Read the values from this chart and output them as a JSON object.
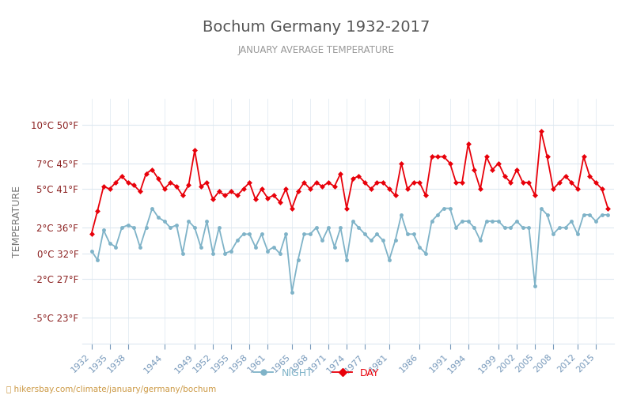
{
  "title": "Bochum Germany 1932-2017",
  "subtitle": "JANUARY AVERAGE TEMPERATURE",
  "ylabel": "TEMPERATURE",
  "xlabel_url": "hikersbay.com/climate/january/germany/bochum",
  "legend_night": "NIGHT",
  "legend_day": "DAY",
  "years": [
    1932,
    1933,
    1934,
    1935,
    1936,
    1937,
    1938,
    1939,
    1940,
    1941,
    1942,
    1943,
    1944,
    1945,
    1946,
    1947,
    1948,
    1949,
    1950,
    1951,
    1952,
    1953,
    1954,
    1955,
    1956,
    1957,
    1958,
    1959,
    1960,
    1961,
    1962,
    1963,
    1964,
    1965,
    1966,
    1967,
    1968,
    1969,
    1970,
    1971,
    1972,
    1973,
    1974,
    1975,
    1976,
    1977,
    1978,
    1979,
    1980,
    1981,
    1982,
    1983,
    1984,
    1985,
    1986,
    1987,
    1988,
    1989,
    1990,
    1991,
    1992,
    1993,
    1994,
    1995,
    1996,
    1997,
    1998,
    1999,
    2000,
    2001,
    2002,
    2003,
    2004,
    2005,
    2006,
    2007,
    2008,
    2009,
    2010,
    2011,
    2012,
    2013,
    2014,
    2015,
    2016,
    2017
  ],
  "day_temps": [
    1.5,
    3.3,
    5.2,
    5.0,
    5.5,
    6.0,
    5.5,
    5.3,
    4.8,
    6.2,
    6.5,
    5.8,
    5.0,
    5.5,
    5.2,
    4.5,
    5.3,
    8.0,
    5.2,
    5.5,
    4.2,
    4.8,
    4.5,
    4.8,
    4.5,
    5.0,
    5.5,
    4.2,
    5.0,
    4.3,
    4.5,
    4.0,
    5.0,
    3.5,
    4.8,
    5.5,
    5.0,
    5.5,
    5.2,
    5.5,
    5.2,
    6.2,
    3.5,
    5.8,
    6.0,
    5.5,
    5.0,
    5.5,
    5.5,
    5.0,
    4.5,
    7.0,
    5.0,
    5.5,
    5.5,
    4.5,
    7.5,
    7.5,
    7.5,
    7.0,
    5.5,
    5.5,
    8.5,
    6.5,
    5.0,
    7.5,
    6.5,
    7.0,
    6.0,
    5.5,
    6.5,
    5.5,
    5.5,
    4.5,
    9.5,
    7.5,
    5.0,
    5.5,
    6.0,
    5.5,
    5.0,
    7.5,
    6.0,
    5.5,
    5.0,
    3.5
  ],
  "night_temps": [
    0.2,
    -0.5,
    1.8,
    0.8,
    0.5,
    2.0,
    2.2,
    2.0,
    0.5,
    2.0,
    3.5,
    2.8,
    2.5,
    2.0,
    2.2,
    0.0,
    2.5,
    2.0,
    0.5,
    2.5,
    0.0,
    2.0,
    0.0,
    0.2,
    1.0,
    1.5,
    1.5,
    0.5,
    1.5,
    0.2,
    0.5,
    0.0,
    1.5,
    -3.0,
    -0.5,
    1.5,
    1.5,
    2.0,
    1.0,
    2.0,
    0.5,
    2.0,
    -0.5,
    2.5,
    2.0,
    1.5,
    1.0,
    1.5,
    1.0,
    -0.5,
    1.0,
    3.0,
    1.5,
    1.5,
    0.5,
    0.0,
    2.5,
    3.0,
    3.5,
    3.5,
    2.0,
    2.5,
    2.5,
    2.0,
    1.0,
    2.5,
    2.5,
    2.5,
    2.0,
    2.0,
    2.5,
    2.0,
    2.0,
    -2.5,
    3.5,
    3.0,
    1.5,
    2.0,
    2.0,
    2.5,
    1.5,
    3.0,
    3.0,
    2.5,
    3.0,
    3.0
  ],
  "day_color": "#e8000a",
  "night_color": "#7fb3c8",
  "title_color": "#555555",
  "subtitle_color": "#999999",
  "ylabel_color": "#777777",
  "tick_label_color": "#8b2020",
  "xtick_color": "#7799bb",
  "grid_color": "#dde8f0",
  "background_color": "#ffffff",
  "yticks_c": [
    -5,
    -2,
    0,
    2,
    5,
    7,
    10
  ],
  "yticks_f": [
    23,
    27,
    32,
    36,
    41,
    45,
    50
  ],
  "ylim": [
    -7.0,
    12.0
  ],
  "xlim": [
    1930.5,
    2018.0
  ],
  "xtick_years": [
    1932,
    1935,
    1938,
    1944,
    1949,
    1952,
    1955,
    1958,
    1961,
    1965,
    1968,
    1971,
    1974,
    1977,
    1981,
    1986,
    1991,
    1994,
    1999,
    2002,
    2005,
    2008,
    2012,
    2015
  ],
  "figsize": [
    8.0,
    5.0
  ],
  "dpi": 100
}
